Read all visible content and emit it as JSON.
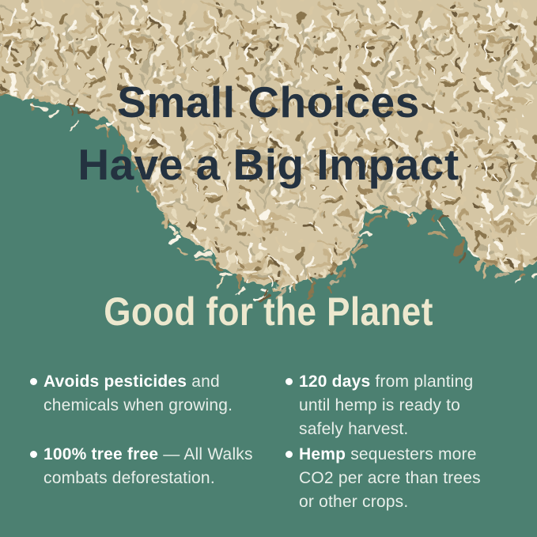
{
  "headline": {
    "line1": "Small Choices",
    "line2": "Have a Big Impact"
  },
  "section": {
    "heading": "Good for the Planet"
  },
  "bullets": [
    {
      "bold": "Avoids pesticides",
      "rest": " and chemicals when growing."
    },
    {
      "bold": "100% tree free",
      "rest": " — All Walks combats deforestation."
    },
    {
      "bold": "120 days",
      "rest": " from planting until hemp is ready to safely harvest."
    },
    {
      "bold": "Hemp",
      "rest": " sequesters more CO2 per acre than trees or other crops."
    }
  ],
  "colors": {
    "background_green": "#4C8071",
    "headline_navy": "#243240",
    "heading_cream": "#EDE8CE",
    "bullet_text": "#E9EFEA",
    "bullet_bold": "#FFFFFF",
    "texture_base": "#D5C6A4",
    "texture_palette": [
      "#F3ECDA",
      "#E7DBBD",
      "#D9C8A4",
      "#C7B38B",
      "#B29C72",
      "#9C855C",
      "#8A744D",
      "#6E5C3E",
      "#FAF5E8",
      "#B8AD8E"
    ]
  }
}
